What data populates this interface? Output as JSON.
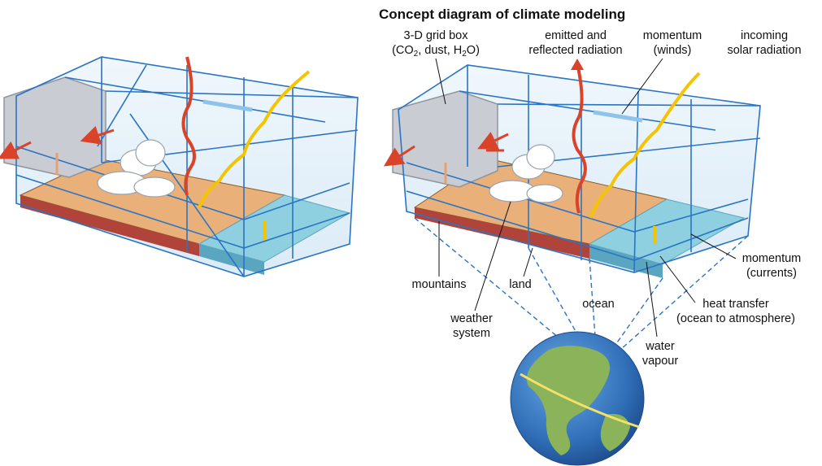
{
  "title": "Concept diagram of climate modeling",
  "labels": {
    "grid_box": {
      "line1": "3-D grid box",
      "co2_pre": "(CO",
      "co2_sub": "2",
      "mid": ", dust, H",
      "h2o_sub": "2",
      "end": "O)"
    },
    "radiation": {
      "line1": "emitted and",
      "line2": "reflected radiation"
    },
    "winds": {
      "line1": "momentum",
      "line2": "(winds)"
    },
    "solar": {
      "line1": "incoming",
      "line2": "solar radiation"
    },
    "currents": {
      "line1": "momentum",
      "line2": "(currents)"
    },
    "mountains": "mountains",
    "land": "land",
    "ocean": "ocean",
    "weather": {
      "line1": "weather",
      "line2": "system"
    },
    "heat": {
      "line1": "heat transfer",
      "line2": "(ocean to atmosphere)"
    },
    "vapour": {
      "line1": "water",
      "line2": "vapour"
    }
  },
  "colors": {
    "grid_blue": "#2a74c4",
    "glass": "#e2f0fa",
    "land": "#e9b07a",
    "mountain": "#b0443a",
    "ocean": "#8fd0e0",
    "radiation_red": "#d9432a",
    "solar_yellow": "#f5b400",
    "wind_blue": "#8fc3ea",
    "globe_ocean": "#2f6db6",
    "globe_land": "#8ab35a"
  },
  "icons": [
    "red-arrow-icon",
    "wavy-arrow-icon",
    "cloud-icon",
    "globe-icon"
  ]
}
